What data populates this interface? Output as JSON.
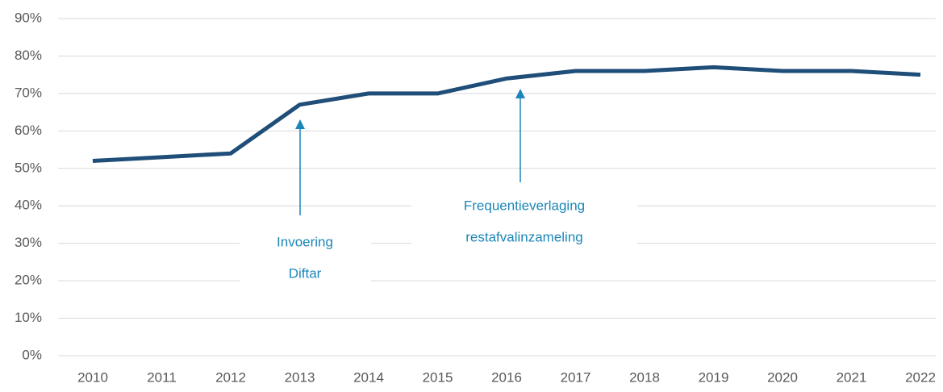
{
  "chart_data": {
    "type": "line",
    "categories": [
      "2010",
      "2011",
      "2012",
      "2013",
      "2014",
      "2015",
      "2016",
      "2017",
      "2018",
      "2019",
      "2020",
      "2021",
      "2022"
    ],
    "series": [
      {
        "color": "#1f4e79",
        "values": [
          52,
          53,
          54,
          67,
          70,
          70,
          74,
          76,
          76,
          77,
          76,
          76,
          75
        ]
      }
    ],
    "ylim": [
      0,
      90
    ],
    "yticks": [
      {
        "value": 0,
        "label": "0%"
      },
      {
        "value": 10,
        "label": "10%"
      },
      {
        "value": 20,
        "label": "20%"
      },
      {
        "value": 30,
        "label": "30%"
      },
      {
        "value": 40,
        "label": "40%"
      },
      {
        "value": 50,
        "label": "50%"
      },
      {
        "value": 60,
        "label": "60%"
      },
      {
        "value": 70,
        "label": "70%"
      },
      {
        "value": 80,
        "label": "80%"
      },
      {
        "value": 90,
        "label": "90%"
      }
    ],
    "grid": true,
    "annotations": [
      {
        "lines": [
          "Invoering",
          "Diftar"
        ]
      },
      {
        "lines": [
          "Frequentieverlaging",
          "restafvalinzameling"
        ]
      }
    ],
    "annotation_color": "#1c86b8"
  }
}
